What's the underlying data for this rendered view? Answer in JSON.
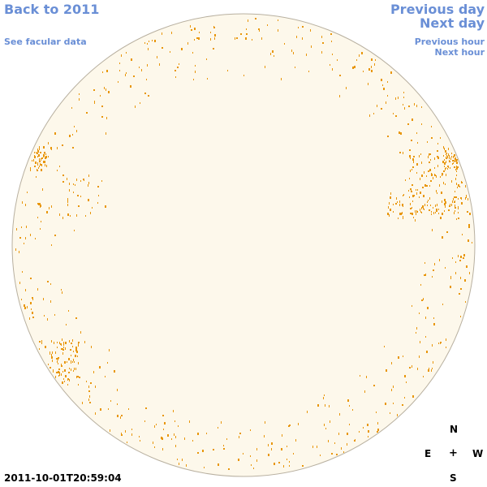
{
  "nav": {
    "back_label": "Back to 2011",
    "facular_label": "See facular data",
    "prev_day_label": "Previous day",
    "next_day_label": "Next day",
    "prev_hour_label": "Previous hour",
    "next_hour_label": "Next hour"
  },
  "compass": {
    "north": "N",
    "east": "E",
    "center": "+",
    "west": "W",
    "south": "S"
  },
  "timestamp": "2011-10-01T20:59:04",
  "colors": {
    "link": "#6a8fd6",
    "disk_fill": "#fdf8eb",
    "disk_edge": "#b8b0a0",
    "faculae": "#e8960a"
  }
}
